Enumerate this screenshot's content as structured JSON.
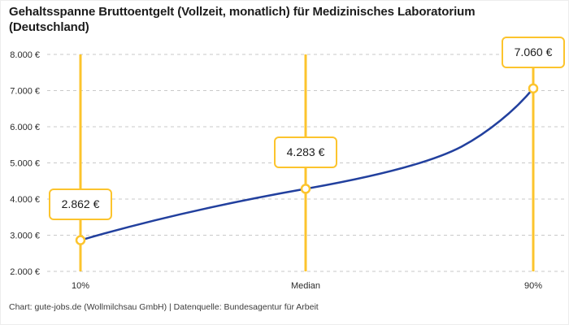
{
  "footer": {
    "text": "Chart: gute-jobs.de (Wollmilchsau GmbH) | Datenquelle: Bundesagentur für Arbeit"
  },
  "chart_data": {
    "type": "line",
    "title": "Gehaltsspanne Bruttoentgelt (Vollzeit, monatlich) für Medizinisches Laboratorium (Deutschland)",
    "categories": [
      "10%",
      "Median",
      "90%"
    ],
    "values": [
      2862,
      4283,
      7060
    ],
    "value_labels": [
      "2.862 €",
      "4.283 €",
      "7.060 €"
    ],
    "ylim": [
      2000,
      8000
    ],
    "ytick_step": 1000,
    "ytick_labels": [
      "2.000 €",
      "3.000 €",
      "4.000 €",
      "5.000 €",
      "6.000 €",
      "7.000 €",
      "8.000 €"
    ],
    "xlabel": "",
    "ylabel": "",
    "grid": "horizontal-dashed",
    "legend": "none",
    "annotation_style": "boxed value labels above each percentile marker on vertical accent lines",
    "colors": {
      "line": "#22409E",
      "accent": "#FCC42D",
      "grid": "#C9C9C9",
      "axis_text": "#2B2B2B",
      "title_text": "#1C1C1C",
      "footer_text": "#3C3C3C",
      "marker_fill": "#FFFFFF"
    }
  }
}
